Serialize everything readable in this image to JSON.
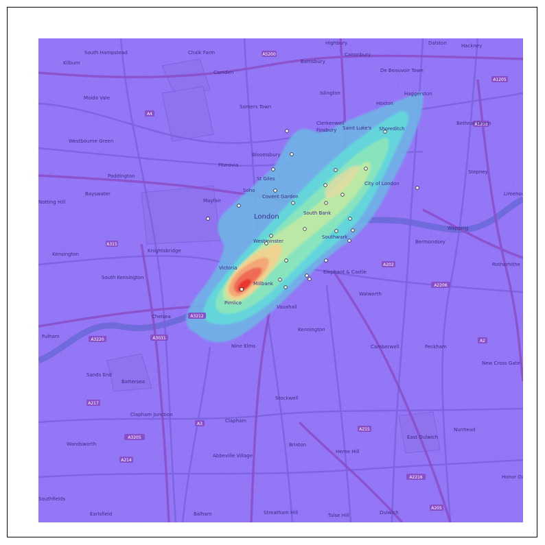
{
  "map": {
    "base_color": "#9477f7",
    "road_color": "#6f5ad8",
    "major_road_color": "#8a4ec7",
    "highlight_color": "#ffffff"
  },
  "places": [
    {
      "name": "Highbury"
    },
    {
      "name": "Dalston"
    },
    {
      "name": "South Hampstead"
    },
    {
      "name": "Chalk Farm"
    },
    {
      "name": "Kilburn"
    },
    {
      "name": "Camden"
    },
    {
      "name": "Barnsbury"
    },
    {
      "name": "Canonbury"
    },
    {
      "name": "De Beauvoir Town"
    },
    {
      "name": "Hackney"
    },
    {
      "name": "Maida Vale"
    },
    {
      "name": "Somers Town"
    },
    {
      "name": "Islington"
    },
    {
      "name": "Hoxton"
    },
    {
      "name": "Haggerston"
    },
    {
      "name": "Westbourne Green"
    },
    {
      "name": "Finsbury"
    },
    {
      "name": "Clerkenwell"
    },
    {
      "name": "Saint Luke's"
    },
    {
      "name": "Shoreditch"
    },
    {
      "name": "Bethnal Green"
    },
    {
      "name": "Bloomsbury"
    },
    {
      "name": "Fitzrovia"
    },
    {
      "name": "Paddington"
    },
    {
      "name": "St Giles"
    },
    {
      "name": "Soho"
    },
    {
      "name": "Covent Garden"
    },
    {
      "name": "Bayswater"
    },
    {
      "name": "Mayfair"
    },
    {
      "name": "City of London"
    },
    {
      "name": "Stepney"
    },
    {
      "name": "Notting Hill"
    },
    {
      "name": "London"
    },
    {
      "name": "South Bank"
    },
    {
      "name": "Limehouse"
    },
    {
      "name": "Wapping"
    },
    {
      "name": "Southwark"
    },
    {
      "name": "Westminster"
    },
    {
      "name": "Kensington"
    },
    {
      "name": "Knightsbridge"
    },
    {
      "name": "Bermondsey"
    },
    {
      "name": "Victoria"
    },
    {
      "name": "Elephant & Castle"
    },
    {
      "name": "Rotherhithe"
    },
    {
      "name": "South Kensington"
    },
    {
      "name": "Millbank"
    },
    {
      "name": "Walworth"
    },
    {
      "name": "Chelsea"
    },
    {
      "name": "Pimlico"
    },
    {
      "name": "Vauxhall"
    },
    {
      "name": "Kennington"
    },
    {
      "name": "Fulham"
    },
    {
      "name": "Nine Elms"
    },
    {
      "name": "Camberwell"
    },
    {
      "name": "Peckham"
    },
    {
      "name": "New Cross Gate"
    },
    {
      "name": "Sands End"
    },
    {
      "name": "Battersea"
    },
    {
      "name": "Stockwell"
    },
    {
      "name": "Clapham Junction"
    },
    {
      "name": "Clapham"
    },
    {
      "name": "Nunhead"
    },
    {
      "name": "Wandsworth"
    },
    {
      "name": "Brixton"
    },
    {
      "name": "Herne Hill"
    },
    {
      "name": "East Dulwich"
    },
    {
      "name": "Abbeville Village"
    },
    {
      "name": "Honor Oak"
    },
    {
      "name": "Balham"
    },
    {
      "name": "Streatham Hill"
    },
    {
      "name": "Tulse Hill"
    },
    {
      "name": "Dulwich"
    },
    {
      "name": "Earlsfield"
    },
    {
      "name": "Southfields"
    }
  ],
  "road_labels": [
    "A5200",
    "A1205",
    "A1208",
    "A315",
    "A4",
    "A3220",
    "A3031",
    "A3212",
    "A3",
    "A2",
    "A215",
    "A217",
    "A3205",
    "A214",
    "A2216",
    "A205",
    "A2206",
    "A202"
  ]
}
